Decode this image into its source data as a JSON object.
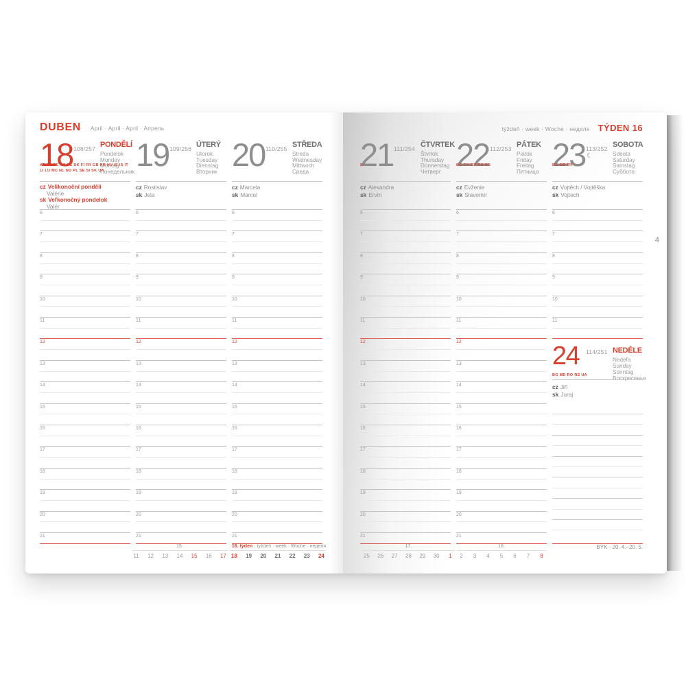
{
  "colors": {
    "accent_red": "#d6402f",
    "gray_number": "#8e8e8e",
    "gray_text": "#9b9b9b"
  },
  "sheet_page_number": "4",
  "left_page": {
    "title": "DUBEN",
    "subtitle": "April · April · April · Апрель",
    "days": [
      {
        "num": "18",
        "num_red": true,
        "doy": "108/257",
        "name": "PONDĚLÍ",
        "name_red": true,
        "translations": [
          "Pondelok",
          "Monday",
          "Montag",
          "Понедельник"
        ],
        "codes": [
          "AT AU BE CZ DE DK FI FR GB HR HU IE IS IT",
          "LI LU MC NL NO PL SE SI SK UA"
        ],
        "names": [
          {
            "prefix": "cz",
            "text": "Velikonoční pondělí",
            "red": true
          },
          {
            "text": "Valérie",
            "indent": true
          },
          {
            "prefix": "sk",
            "text": "Veľkonočný pondelok",
            "red": true
          },
          {
            "text": "Valér",
            "indent": true
          }
        ]
      },
      {
        "num": "19",
        "doy": "109/256",
        "name": "ÚTERÝ",
        "translations": [
          "Utorok",
          "Tuesday",
          "Dienstag",
          "Вторник"
        ],
        "codes": [],
        "names": [
          {
            "prefix": "cz",
            "text": "Rostislav"
          },
          {
            "prefix": "sk",
            "text": "Jela"
          }
        ]
      },
      {
        "num": "20",
        "doy": "110/255",
        "name": "STŘEDA",
        "translations": [
          "Streda",
          "Wednesday",
          "Mittwoch",
          "Среда"
        ],
        "codes": [],
        "names": [
          {
            "prefix": "cz",
            "text": "Marcela"
          },
          {
            "prefix": "sk",
            "text": "Marcel"
          }
        ]
      }
    ],
    "week_strip": {
      "groups": [
        {
          "label_parts": [
            {
              "text": "15."
            }
          ],
          "label_align": "center",
          "numbers": [
            {
              "t": "11"
            },
            {
              "t": "12"
            },
            {
              "t": "13"
            },
            {
              "t": "14"
            },
            {
              "t": "15",
              "red": true
            },
            {
              "t": "16"
            },
            {
              "t": "17",
              "red": true
            }
          ]
        },
        {
          "label_parts": [
            {
              "text": "16. týden",
              "red": true
            },
            {
              "text": " · týždeň · week · Woche · неделя"
            }
          ],
          "label_align": "right",
          "numbers": [
            {
              "t": "18",
              "red": true,
              "bold": true
            },
            {
              "t": "19",
              "bold": true
            },
            {
              "t": "20",
              "bold": true
            },
            {
              "t": "21",
              "bold": true
            },
            {
              "t": "22",
              "bold": true
            },
            {
              "t": "23",
              "bold": true
            },
            {
              "t": "24",
              "red": true,
              "bold": true
            }
          ]
        }
      ]
    }
  },
  "right_page": {
    "header_label": "týždeň · week · Woche · неделя",
    "week_title": "TÝDEN 16",
    "days": [
      {
        "num": "21",
        "doy": "111/254",
        "name": "ČTVRTEK",
        "translations": [
          "Štvrtok",
          "Thursday",
          "Donnerstag",
          "Четверг"
        ],
        "codes": [
          "B"
        ],
        "names": [
          {
            "prefix": "cz",
            "text": "Alexandra"
          },
          {
            "prefix": "sk",
            "text": "Ervín"
          }
        ]
      },
      {
        "num": "22",
        "doy": "112/253",
        "name": "PÁTEK",
        "translations": [
          "Piatok",
          "Friday",
          "Freitag",
          "Пятница"
        ],
        "codes": [
          "BG CY GR RO RS"
        ],
        "names": [
          {
            "prefix": "cz",
            "text": "Evženie"
          },
          {
            "prefix": "sk",
            "text": "Slavomír"
          }
        ]
      },
      {
        "num": "23",
        "doy": "113/252",
        "moon": "☾",
        "name": "SOBOTA",
        "translations": [
          "Sobota",
          "Saturday",
          "Samstag",
          "Суббота"
        ],
        "codes": [
          "BG GR TR"
        ],
        "names": [
          {
            "prefix": "cz",
            "text": "Vojtěch / Vojtěška"
          },
          {
            "prefix": "sk",
            "text": "Vojtech"
          }
        ]
      }
    ],
    "sunday": {
      "num": "24",
      "doy": "114/251",
      "name": "NEDĚLE",
      "translations": [
        "Nedeľa",
        "Sunday",
        "Sonntag",
        "Воскресенье"
      ],
      "codes": [
        "BG MD RO RS UA"
      ],
      "names": [
        {
          "prefix": "cz",
          "text": "Jiří"
        },
        {
          "prefix": "sk",
          "text": "Juraj"
        }
      ]
    },
    "week_strip": {
      "groups": [
        {
          "label_parts": [
            {
              "text": "17."
            }
          ],
          "label_align": "center",
          "numbers": [
            {
              "t": "25"
            },
            {
              "t": "26"
            },
            {
              "t": "27"
            },
            {
              "t": "28"
            },
            {
              "t": "29"
            },
            {
              "t": "30"
            },
            {
              "t": "1",
              "red": true
            }
          ]
        },
        {
          "label_parts": [
            {
              "text": "18."
            }
          ],
          "label_align": "center",
          "numbers": [
            {
              "t": "2"
            },
            {
              "t": "3"
            },
            {
              "t": "4"
            },
            {
              "t": "5"
            },
            {
              "t": "6"
            },
            {
              "t": "7"
            },
            {
              "t": "8",
              "red": true
            }
          ]
        }
      ]
    },
    "zodiac": "BÝK · 20. 4.–20. 5."
  },
  "hours": {
    "full": [
      "6",
      "7",
      "8",
      "9",
      "10",
      "11",
      "12",
      "13",
      "14",
      "15",
      "16",
      "17",
      "18",
      "19",
      "20",
      "21"
    ],
    "saturday_top": [
      "6",
      "7",
      "8",
      "9",
      "10",
      "11"
    ],
    "red_hour": "12"
  }
}
